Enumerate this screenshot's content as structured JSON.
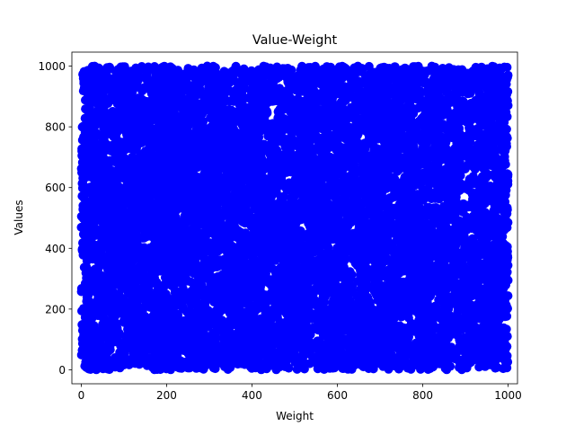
{
  "chart_data": {
    "type": "scatter",
    "title": "Value-Weight",
    "xlabel": "Weight",
    "ylabel": "Values",
    "xlim": [
      -22,
      1022
    ],
    "ylim": [
      -46,
      1046
    ],
    "x_ticks": [
      0,
      200,
      400,
      600,
      800,
      1000
    ],
    "y_ticks": [
      0,
      200,
      400,
      600,
      800,
      1000
    ],
    "grid": false,
    "legend": "none",
    "marker_color": "#0000ff",
    "point_count": 10000,
    "x_range": [
      0,
      1000
    ],
    "y_range": [
      0,
      1000
    ],
    "distribution": "uniform",
    "points": [
      [
        12,
        8
      ],
      [
        985,
        992
      ],
      [
        503,
        497
      ],
      [
        251,
        743
      ],
      [
        748,
        256
      ],
      [
        97,
        908
      ],
      [
        903,
        91
      ],
      [
        402,
        598
      ],
      [
        599,
        401
      ],
      [
        55,
        455
      ],
      [
        946,
        548
      ],
      [
        333,
        33
      ],
      [
        666,
        966
      ],
      [
        177,
        288
      ],
      [
        822,
        711
      ],
      [
        460,
        145
      ],
      [
        539,
        855
      ],
      [
        25,
        640
      ],
      [
        975,
        360
      ],
      [
        700,
        700
      ]
    ]
  }
}
